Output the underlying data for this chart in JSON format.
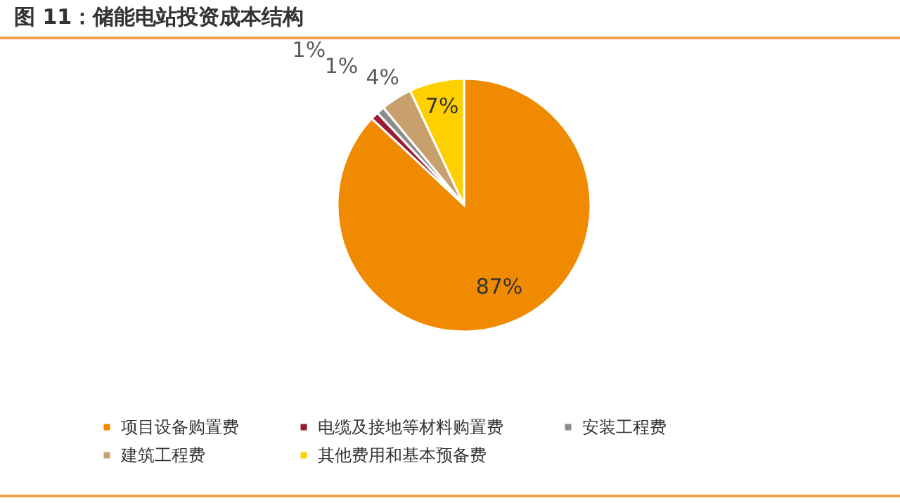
{
  "chart_data": {
    "type": "pie",
    "title": "图 11：储能电站投资成本结构",
    "categories": [
      "项目设备购置费",
      "电缆及接地等材料购置费",
      "安装工程费",
      "建筑工程费",
      "其他费用和基本预备费"
    ],
    "values": [
      87,
      1,
      1,
      4,
      7
    ],
    "value_labels": [
      "87%",
      "1%",
      "1%",
      "4%",
      "7%"
    ],
    "colors": [
      "#f08a00",
      "#9b1b30",
      "#8c8c8c",
      "#c8a06e",
      "#ffd000"
    ],
    "legend": "bottom"
  }
}
